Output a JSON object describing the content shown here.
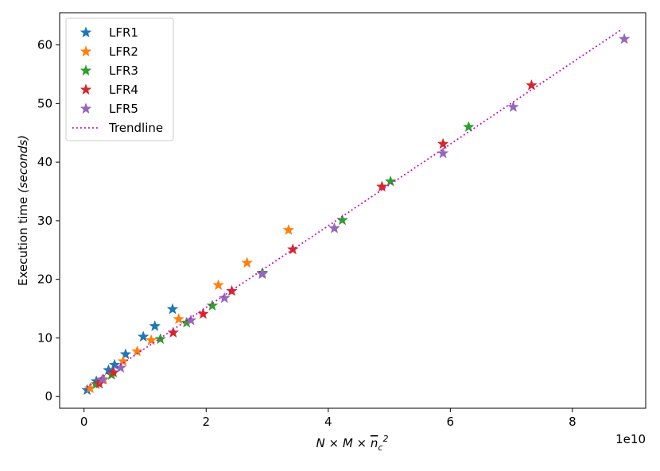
{
  "chart_data": {
    "type": "scatter",
    "title": "",
    "xlabel": "N × M × n̄c²",
    "ylabel": "Execution time (seconds)",
    "ylabel_plain": "Execution time",
    "ylabel_italic": "(seconds)",
    "x_multiplier": "1e10",
    "xlim": [
      -0.4,
      9.2
    ],
    "ylim": [
      -2,
      65.5
    ],
    "x_ticks": [
      0,
      2,
      4,
      6,
      8
    ],
    "y_ticks": [
      0,
      10,
      20,
      30,
      40,
      50,
      60
    ],
    "grid": false,
    "legend_position": "top-left",
    "series": [
      {
        "name": "LFR1",
        "color": "#1f77b4",
        "x": [
          0.05,
          0.2,
          0.4,
          0.5,
          0.68,
          0.97,
          1.16,
          1.45
        ],
        "y": [
          1.1,
          2.6,
          4.5,
          5.4,
          7.2,
          10.2,
          12.0,
          14.9
        ]
      },
      {
        "name": "LFR2",
        "color": "#ff7f0e",
        "x": [
          0.1,
          0.32,
          0.64,
          0.87,
          1.1,
          1.55,
          2.2,
          2.67,
          3.35
        ],
        "y": [
          1.4,
          2.9,
          6.0,
          7.7,
          9.6,
          13.2,
          19.0,
          22.8,
          28.4
        ]
      },
      {
        "name": "LFR3",
        "color": "#2ca02c",
        "x": [
          0.2,
          0.45,
          1.25,
          1.68,
          2.1,
          2.92,
          4.23,
          5.02,
          6.3
        ],
        "y": [
          2.1,
          3.7,
          9.8,
          12.6,
          15.5,
          21.1,
          30.1,
          36.7,
          46.0
        ]
      },
      {
        "name": "LFR4",
        "color": "#d62728",
        "x": [
          0.25,
          0.48,
          1.46,
          1.95,
          2.42,
          3.42,
          4.88,
          5.88,
          7.33
        ],
        "y": [
          2.2,
          4.1,
          10.9,
          14.1,
          18.0,
          25.1,
          35.8,
          43.1,
          53.1
        ]
      },
      {
        "name": "LFR5",
        "color": "#9467bd",
        "x": [
          0.3,
          0.6,
          1.75,
          2.3,
          2.92,
          4.1,
          5.88,
          7.03,
          8.85
        ],
        "y": [
          2.9,
          4.9,
          13.0,
          16.8,
          20.9,
          28.7,
          41.5,
          49.4,
          61.0
        ]
      }
    ],
    "trendline": {
      "name": "Trendline",
      "color": "#cc00cc",
      "style": "dotted",
      "x": [
        0.05,
        8.8
      ],
      "y": [
        1.6,
        62.6
      ]
    }
  }
}
